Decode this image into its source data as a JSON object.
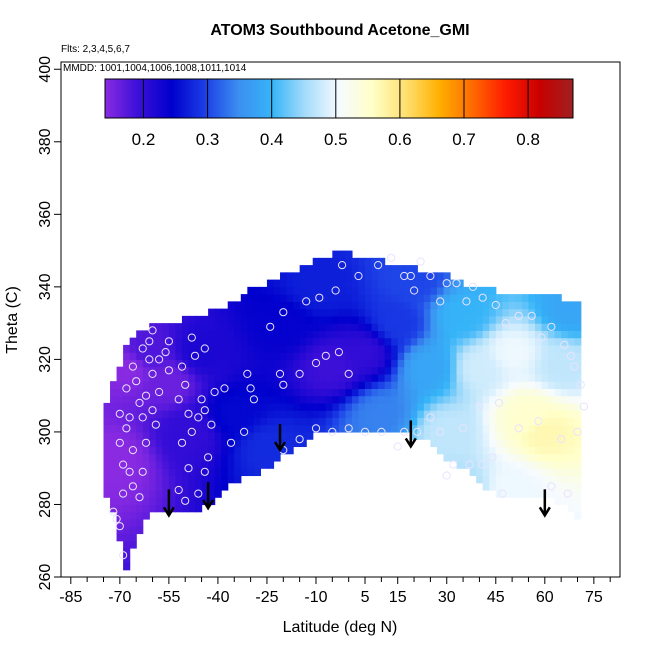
{
  "chart_data": {
    "type": "heatmap",
    "title": "ATOM3 Southbound Acetone_GMI",
    "flights_note": "Flts: 2,3,4,5,6,7",
    "dates_note": "MMDD: 1001,1004,1006,1008,1011,1014",
    "xlabel": "Latitude (deg N)",
    "ylabel": "Theta (C)",
    "xlim": [
      -88,
      83
    ],
    "ylim": [
      260,
      402
    ],
    "x_ticks": [
      -85,
      -70,
      -55,
      -40,
      -25,
      -10,
      5,
      15,
      30,
      45,
      60,
      75
    ],
    "y_ticks": [
      260,
      280,
      300,
      320,
      340,
      360,
      380,
      400
    ],
    "colorbar": {
      "range": [
        0.14,
        0.87
      ],
      "ticks": [
        0.2,
        0.3,
        0.4,
        0.5,
        0.6,
        0.7,
        0.8
      ],
      "colors": [
        "#8a2be2",
        "#3a0fd8",
        "#0000cd",
        "#1c3fe6",
        "#3b8ff0",
        "#36b4f8",
        "#a6dcfa",
        "#f6fbff",
        "#ffffc8",
        "#ffe070",
        "#ffb000",
        "#ff6a00",
        "#ff1a00",
        "#c80000",
        "#a02020"
      ]
    },
    "profile": [
      {
        "lat": -74,
        "bottom": 283,
        "top": 308
      },
      {
        "lat": -72,
        "bottom": 278,
        "top": 314
      },
      {
        "lat": -70,
        "bottom": 270,
        "top": 318
      },
      {
        "lat": -68,
        "bottom": 262,
        "top": 323
      },
      {
        "lat": -66,
        "bottom": 268,
        "top": 326
      },
      {
        "lat": -63,
        "bottom": 275,
        "top": 328
      },
      {
        "lat": -60,
        "bottom": 278,
        "top": 330
      },
      {
        "lat": -55,
        "bottom": 279,
        "top": 330
      },
      {
        "lat": -50,
        "bottom": 278,
        "top": 331
      },
      {
        "lat": -45,
        "bottom": 279,
        "top": 332
      },
      {
        "lat": -40,
        "bottom": 282,
        "top": 334
      },
      {
        "lat": -35,
        "bottom": 286,
        "top": 336
      },
      {
        "lat": -30,
        "bottom": 288,
        "top": 339
      },
      {
        "lat": -25,
        "bottom": 290,
        "top": 341
      },
      {
        "lat": -20,
        "bottom": 294,
        "top": 343
      },
      {
        "lat": -15,
        "bottom": 296,
        "top": 345
      },
      {
        "lat": -10,
        "bottom": 300,
        "top": 347
      },
      {
        "lat": -5,
        "bottom": 301,
        "top": 349
      },
      {
        "lat": 0,
        "bottom": 301,
        "top": 349
      },
      {
        "lat": 5,
        "bottom": 301,
        "top": 348
      },
      {
        "lat": 10,
        "bottom": 301,
        "top": 347
      },
      {
        "lat": 15,
        "bottom": 300,
        "top": 346
      },
      {
        "lat": 20,
        "bottom": 299,
        "top": 345
      },
      {
        "lat": 25,
        "bottom": 297,
        "top": 344
      },
      {
        "lat": 30,
        "bottom": 293,
        "top": 343
      },
      {
        "lat": 35,
        "bottom": 290,
        "top": 341
      },
      {
        "lat": 40,
        "bottom": 286,
        "top": 340
      },
      {
        "lat": 45,
        "bottom": 283,
        "top": 339
      },
      {
        "lat": 50,
        "bottom": 282,
        "top": 338
      },
      {
        "lat": 55,
        "bottom": 282,
        "top": 338
      },
      {
        "lat": 60,
        "bottom": 282,
        "top": 337
      },
      {
        "lat": 65,
        "bottom": 280,
        "top": 337
      },
      {
        "lat": 70,
        "bottom": 277,
        "top": 336
      }
    ],
    "field_centers": [
      {
        "lat": -72,
        "theta": 292,
        "value": 0.14
      },
      {
        "lat": -67,
        "theta": 318,
        "value": 0.14
      },
      {
        "lat": -62,
        "theta": 322,
        "value": 0.18
      },
      {
        "lat": -55,
        "theta": 314,
        "value": 0.16
      },
      {
        "lat": -48,
        "theta": 300,
        "value": 0.2
      },
      {
        "lat": -45,
        "theta": 322,
        "value": 0.22
      },
      {
        "lat": -35,
        "theta": 305,
        "value": 0.25
      },
      {
        "lat": -25,
        "theta": 296,
        "value": 0.28
      },
      {
        "lat": -20,
        "theta": 330,
        "value": 0.24
      },
      {
        "lat": -10,
        "theta": 340,
        "value": 0.27
      },
      {
        "lat": -5,
        "theta": 318,
        "value": 0.19
      },
      {
        "lat": 5,
        "theta": 322,
        "value": 0.2
      },
      {
        "lat": 10,
        "theta": 305,
        "value": 0.34
      },
      {
        "lat": 15,
        "theta": 330,
        "value": 0.29
      },
      {
        "lat": 20,
        "theta": 342,
        "value": 0.3
      },
      {
        "lat": 25,
        "theta": 318,
        "value": 0.38
      },
      {
        "lat": 30,
        "theta": 300,
        "value": 0.47
      },
      {
        "lat": 35,
        "theta": 332,
        "value": 0.4
      },
      {
        "lat": 40,
        "theta": 318,
        "value": 0.48
      },
      {
        "lat": 50,
        "theta": 322,
        "value": 0.5
      },
      {
        "lat": 55,
        "theta": 305,
        "value": 0.55
      },
      {
        "lat": 60,
        "theta": 300,
        "value": 0.57
      },
      {
        "lat": 65,
        "theta": 318,
        "value": 0.47
      },
      {
        "lat": 68,
        "theta": 334,
        "value": 0.38
      },
      {
        "lat": 50,
        "theta": 285,
        "value": 0.5
      },
      {
        "lat": 35,
        "theta": 285,
        "value": 0.46
      }
    ],
    "observations": [
      [
        -69,
        266
      ],
      [
        -70,
        274
      ],
      [
        -72,
        278
      ],
      [
        -71,
        276
      ],
      [
        -69,
        283
      ],
      [
        -66,
        285
      ],
      [
        -64,
        282
      ],
      [
        -67,
        289
      ],
      [
        -63,
        289
      ],
      [
        -69,
        291
      ],
      [
        -70,
        297
      ],
      [
        -66,
        295
      ],
      [
        -62,
        297
      ],
      [
        -68,
        301
      ],
      [
        -63,
        304
      ],
      [
        -67,
        304
      ],
      [
        -70,
        305
      ],
      [
        -59,
        302
      ],
      [
        -60,
        306
      ],
      [
        -58,
        311
      ],
      [
        -64,
        308
      ],
      [
        -68,
        312
      ],
      [
        -62,
        310
      ],
      [
        -65,
        314
      ],
      [
        -60,
        316
      ],
      [
        -61,
        320
      ],
      [
        -63,
        323
      ],
      [
        -66,
        318
      ],
      [
        -58,
        320
      ],
      [
        -61,
        325
      ],
      [
        -60,
        328
      ],
      [
        -55,
        317
      ],
      [
        -56,
        322
      ],
      [
        -55,
        325
      ],
      [
        -51,
        318
      ],
      [
        -50,
        313
      ],
      [
        -52,
        309
      ],
      [
        -49,
        305
      ],
      [
        -48,
        300
      ],
      [
        -51,
        297
      ],
      [
        -49,
        290
      ],
      [
        -52,
        284
      ],
      [
        -50,
        281
      ],
      [
        -46,
        283
      ],
      [
        -44,
        289
      ],
      [
        -43,
        293
      ],
      [
        -46,
        304
      ],
      [
        -44,
        306
      ],
      [
        -42,
        302
      ],
      [
        -45,
        309
      ],
      [
        -41,
        311
      ],
      [
        -47,
        321
      ],
      [
        -44,
        323
      ],
      [
        -48,
        326
      ],
      [
        -38,
        312
      ],
      [
        -31,
        316
      ],
      [
        -30,
        312
      ],
      [
        -29,
        309
      ],
      [
        -21,
        316
      ],
      [
        -20,
        313
      ],
      [
        -15,
        316
      ],
      [
        -10,
        319
      ],
      [
        -7,
        321
      ],
      [
        -3,
        322
      ],
      [
        0,
        316
      ],
      [
        -24,
        329
      ],
      [
        -20,
        333
      ],
      [
        -13,
        336
      ],
      [
        -9,
        337
      ],
      [
        -4,
        339
      ],
      [
        -2,
        346
      ],
      [
        3,
        343
      ],
      [
        9,
        346
      ],
      [
        13,
        348
      ],
      [
        17,
        343
      ],
      [
        19,
        343
      ],
      [
        20,
        339
      ],
      [
        22,
        347
      ],
      [
        25,
        343
      ],
      [
        28,
        336
      ],
      [
        30,
        341
      ],
      [
        33,
        341
      ],
      [
        36,
        336
      ],
      [
        38,
        340
      ],
      [
        41,
        337
      ],
      [
        45,
        335
      ],
      [
        48,
        330
      ],
      [
        52,
        332
      ],
      [
        56,
        332
      ],
      [
        59,
        326
      ],
      [
        62,
        329
      ],
      [
        66,
        324
      ],
      [
        68,
        321
      ],
      [
        71,
        313
      ],
      [
        69,
        318
      ],
      [
        72,
        307
      ],
      [
        70,
        300
      ],
      [
        65,
        298
      ],
      [
        58,
        303
      ],
      [
        52,
        301
      ],
      [
        46,
        308
      ],
      [
        40,
        307
      ],
      [
        35,
        301
      ],
      [
        28,
        300
      ],
      [
        25,
        304
      ],
      [
        21,
        300
      ],
      [
        17,
        300
      ],
      [
        15,
        296
      ],
      [
        10,
        300
      ],
      [
        5,
        300
      ],
      [
        0,
        301
      ],
      [
        -5,
        300
      ],
      [
        -10,
        301
      ],
      [
        -15,
        298
      ],
      [
        -20,
        295
      ],
      [
        -32,
        300
      ],
      [
        -36,
        297
      ],
      [
        41,
        291
      ],
      [
        44,
        293
      ],
      [
        37,
        291
      ],
      [
        32,
        291
      ],
      [
        30,
        288
      ],
      [
        47,
        283
      ],
      [
        62,
        285
      ],
      [
        67,
        283
      ]
    ],
    "arrows_latitudes": [
      -55,
      -43,
      -21,
      19,
      60
    ],
    "arrow_heads_theta": [
      277,
      279,
      295,
      296,
      277
    ]
  }
}
